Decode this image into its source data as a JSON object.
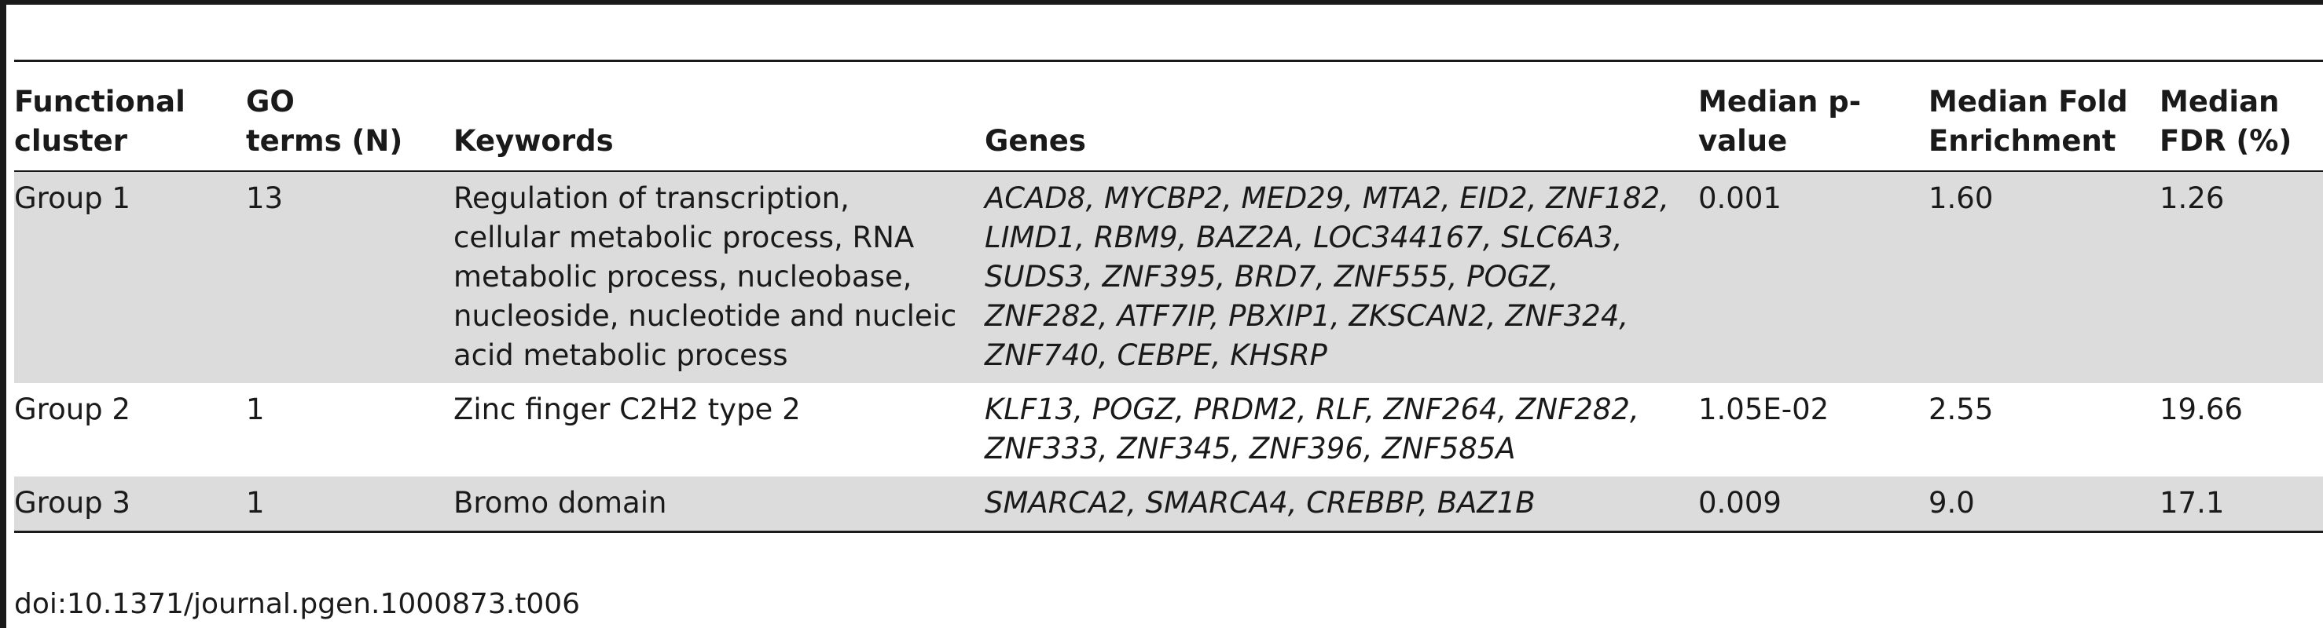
{
  "table": {
    "headers": [
      "Functional cluster",
      "GO terms (N)",
      "Keywords",
      "Genes",
      "Median p-value",
      "Median Fold Enrichment",
      "Median FDR (%)"
    ],
    "header_lines": [
      [
        "Functional",
        "cluster"
      ],
      [
        "GO",
        "terms (N)"
      ],
      [
        "Keywords"
      ],
      [
        "Genes"
      ],
      [
        "Median p-",
        "value"
      ],
      [
        "Median Fold",
        "Enrichment"
      ],
      [
        "Median",
        "FDR (%)"
      ]
    ],
    "rows": [
      {
        "cluster": "Group 1",
        "go_terms": "13",
        "keywords": "Regulation of transcription, cellular metabolic process, RNA metabolic process, nucleobase, nucleoside, nucleotide and nucleic acid metabolic process",
        "genes": "ACAD8, MYCBP2, MED29, MTA2, EID2, ZNF182, LIMD1, RBM9, BAZ2A, LOC344167, SLC6A3, SUDS3, ZNF395, BRD7, ZNF555, POGZ, ZNF282, ATF7IP, PBXIP1, ZKSCAN2, ZNF324, ZNF740, CEBPE, KHSRP",
        "p_value": "0.001",
        "fold_enrichment": "1.60",
        "fdr": "1.26"
      },
      {
        "cluster": "Group 2",
        "go_terms": "1",
        "keywords": "Zinc finger C2H2 type 2",
        "genes": "KLF13, POGZ, PRDM2, RLF, ZNF264, ZNF282, ZNF333, ZNF345, ZNF396, ZNF585A",
        "p_value": "1.05E-02",
        "fold_enrichment": "2.55",
        "fdr": "19.66"
      },
      {
        "cluster": "Group 3",
        "go_terms": "1",
        "keywords": "Bromo domain",
        "genes": "SMARCA2, SMARCA4, CREBBP, BAZ1B",
        "p_value": "0.009",
        "fold_enrichment": "9.0",
        "fdr": "17.1"
      }
    ]
  },
  "footer": {
    "doi": "doi:10.1371/journal.pgen.1000873.t006"
  }
}
